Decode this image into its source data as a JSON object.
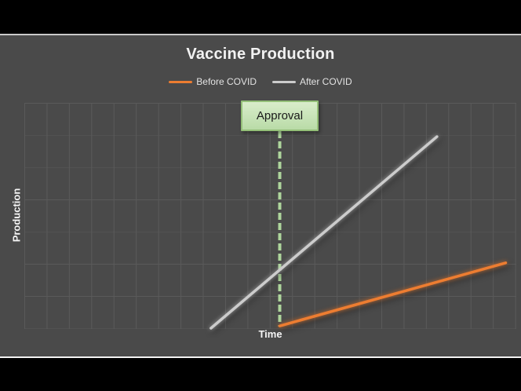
{
  "styles": {
    "slide_bg": "#4a4a4a",
    "letterbox_color": "#000000",
    "grid_color": "#5a5a5a",
    "title_color": "#f2f2f2"
  },
  "chart_data": {
    "type": "line",
    "title": "Vaccine Production",
    "xlabel": "Time",
    "ylabel": "Production",
    "xlim": [
      0,
      100
    ],
    "ylim": [
      0,
      100
    ],
    "ticks_shown": false,
    "grid": true,
    "legend_position": "top-center",
    "series": [
      {
        "name": "Before COVID",
        "color": "#ed7d31",
        "x": [
          52,
          98
        ],
        "y": [
          1,
          29
        ]
      },
      {
        "name": "After COVID",
        "color": "#cccccc",
        "x": [
          38,
          84
        ],
        "y": [
          0,
          85
        ]
      }
    ],
    "annotations": [
      {
        "label": "Approval",
        "type": "vline-dashed",
        "x": 52,
        "line_color": "#aed69c",
        "box_fill": "#c9e3ba",
        "box_border": "#94bf78"
      }
    ]
  }
}
